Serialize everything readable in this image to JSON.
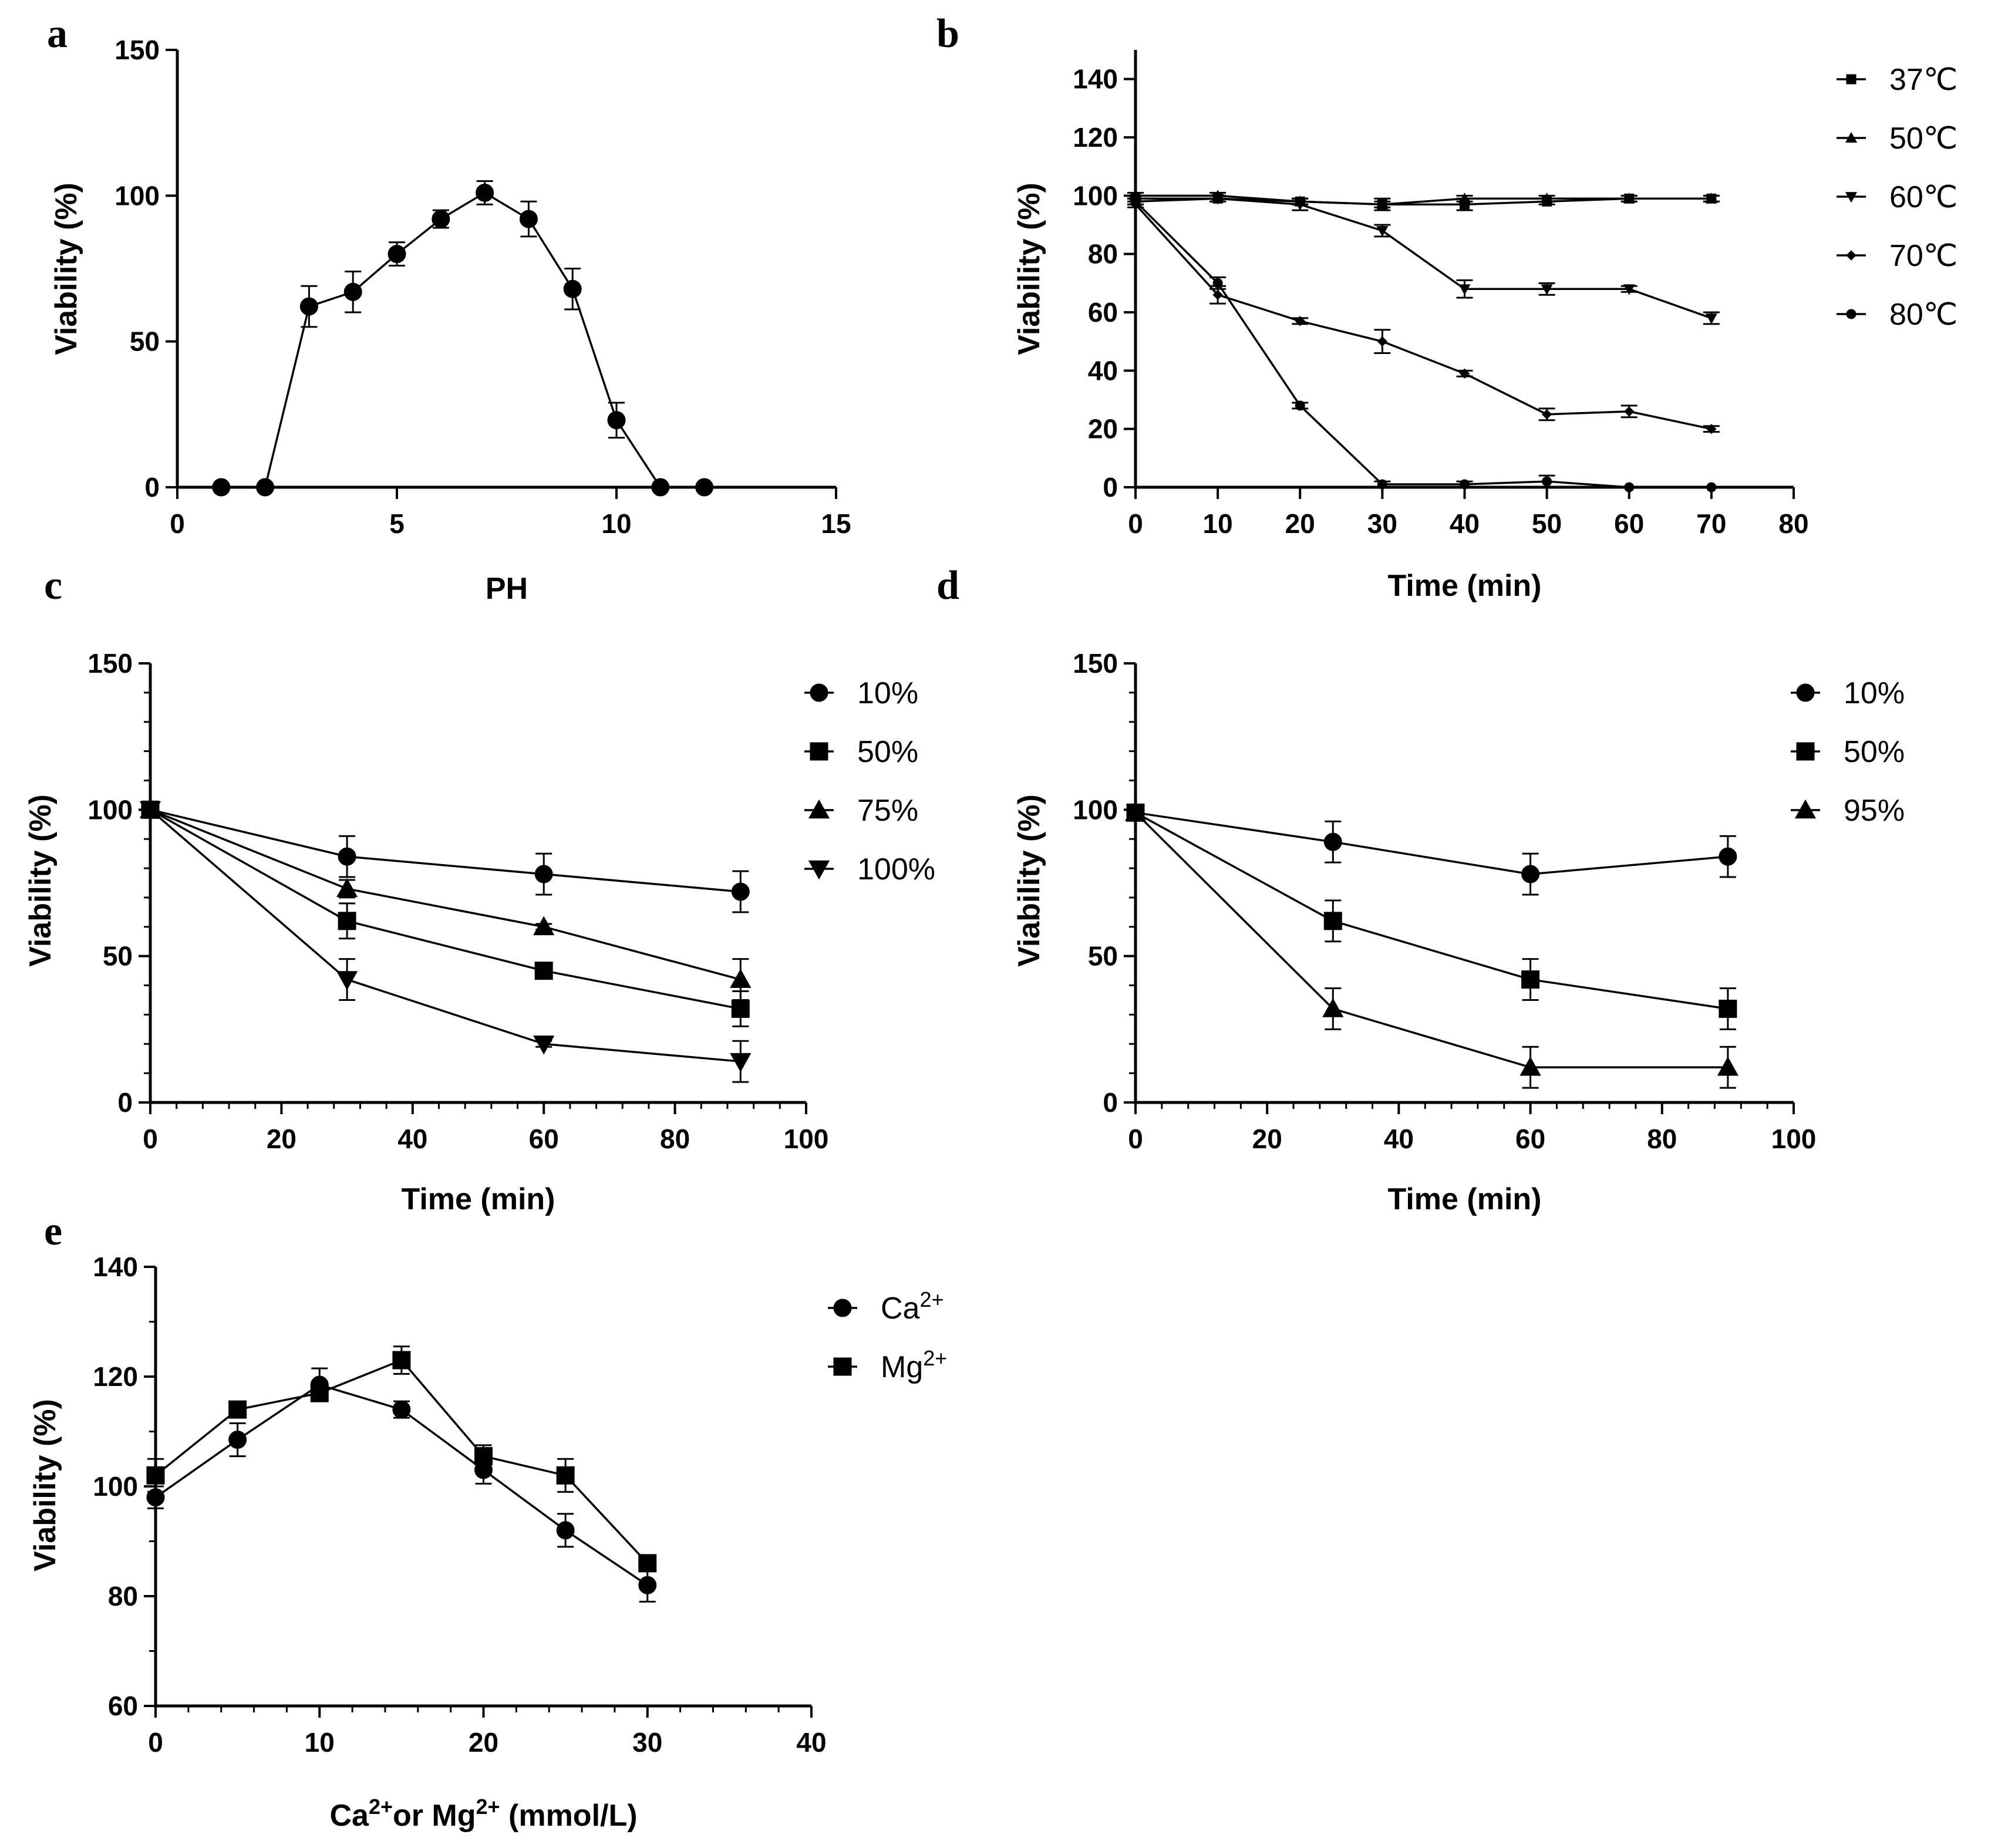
{
  "figure": {
    "panels": [
      "a",
      "b",
      "c",
      "d",
      "e"
    ]
  },
  "chart_data": [
    {
      "panel": "a",
      "type": "line",
      "xlabel": "PH",
      "ylabel": "Viability (%)",
      "xlim": [
        0,
        15
      ],
      "ylim": [
        0,
        150
      ],
      "xticks": [
        0,
        5,
        10,
        15
      ],
      "yticks": [
        0,
        50,
        100,
        150
      ],
      "legend": null,
      "series": [
        {
          "name": "viability",
          "marker": "circle",
          "x": [
            1,
            2,
            3,
            4,
            5,
            6,
            7,
            8,
            9,
            10,
            11,
            12
          ],
          "y": [
            0,
            0,
            62,
            67,
            80,
            92,
            101,
            92,
            68,
            23,
            0,
            0
          ],
          "err": [
            0,
            0,
            7,
            7,
            4,
            3,
            4,
            6,
            7,
            6,
            0,
            0
          ]
        }
      ]
    },
    {
      "panel": "b",
      "type": "line",
      "xlabel": "Time (min)",
      "ylabel": "Viability (%)",
      "xlim": [
        0,
        80
      ],
      "ylim": [
        0,
        150
      ],
      "xticks": [
        0,
        10,
        20,
        30,
        40,
        50,
        60,
        70,
        80
      ],
      "yticks": [
        0,
        20,
        40,
        60,
        80,
        100,
        120,
        140
      ],
      "legend": "right",
      "series": [
        {
          "name": "37℃",
          "marker": "square",
          "x": [
            0,
            10,
            20,
            30,
            40,
            50,
            60,
            70
          ],
          "y": [
            99,
            99,
            98,
            97,
            97,
            98,
            99,
            99
          ],
          "err": [
            1,
            1,
            1,
            2,
            2,
            1,
            1,
            1
          ]
        },
        {
          "name": "50℃",
          "marker": "triangle-up",
          "x": [
            0,
            10,
            20,
            30,
            40,
            50,
            60,
            70
          ],
          "y": [
            100,
            100,
            98,
            97,
            99,
            99,
            99,
            99
          ],
          "err": [
            1,
            1,
            1,
            1,
            1,
            1,
            1,
            1
          ]
        },
        {
          "name": "60℃",
          "marker": "triangle-down",
          "x": [
            0,
            10,
            20,
            30,
            40,
            50,
            60,
            70
          ],
          "y": [
            98,
            99,
            97,
            88,
            68,
            68,
            68,
            58
          ],
          "err": [
            1,
            1,
            2,
            2,
            3,
            2,
            1,
            2
          ]
        },
        {
          "name": "70℃",
          "marker": "diamond",
          "x": [
            0,
            10,
            20,
            30,
            40,
            50,
            60,
            70
          ],
          "y": [
            97,
            66,
            57,
            50,
            39,
            25,
            26,
            20
          ],
          "err": [
            1,
            3,
            1,
            4,
            1,
            2,
            2,
            1
          ]
        },
        {
          "name": "80℃",
          "marker": "circle",
          "x": [
            0,
            10,
            20,
            30,
            40,
            50,
            60,
            70
          ],
          "y": [
            98,
            70,
            28,
            1,
            1,
            2,
            0,
            0
          ],
          "err": [
            1,
            2,
            1,
            1,
            1,
            2,
            0,
            0
          ]
        }
      ]
    },
    {
      "panel": "c",
      "type": "line",
      "xlabel": "Time (min)",
      "ylabel": "Viability (%)",
      "xlim": [
        0,
        100
      ],
      "ylim": [
        0,
        150
      ],
      "xticks": [
        0,
        20,
        40,
        60,
        80,
        100
      ],
      "yticks": [
        0,
        50,
        100,
        150
      ],
      "legend": "right",
      "series": [
        {
          "name": "10%",
          "marker": "circle",
          "x": [
            0,
            30,
            60,
            90
          ],
          "y": [
            100,
            84,
            78,
            72
          ],
          "err": [
            2,
            7,
            7,
            7
          ]
        },
        {
          "name": "50%",
          "marker": "square",
          "x": [
            0,
            30,
            60,
            90
          ],
          "y": [
            100,
            62,
            45,
            32
          ],
          "err": [
            2,
            6,
            1,
            6
          ]
        },
        {
          "name": "75%",
          "marker": "triangle-up",
          "x": [
            0,
            30,
            60,
            90
          ],
          "y": [
            100,
            73,
            60,
            42
          ],
          "err": [
            2,
            3,
            1,
            7
          ]
        },
        {
          "name": "100%",
          "marker": "triangle-down",
          "x": [
            0,
            30,
            60,
            90
          ],
          "y": [
            100,
            42,
            20,
            14
          ],
          "err": [
            2,
            7,
            1,
            7
          ]
        }
      ]
    },
    {
      "panel": "d",
      "type": "line",
      "xlabel": "Time (min)",
      "ylabel": "Viability (%)",
      "xlim": [
        0,
        100
      ],
      "ylim": [
        0,
        150
      ],
      "xticks": [
        0,
        20,
        40,
        60,
        80,
        100
      ],
      "yticks": [
        0,
        50,
        100,
        150
      ],
      "legend": "right",
      "series": [
        {
          "name": "10%",
          "marker": "circle",
          "x": [
            0,
            30,
            60,
            90
          ],
          "y": [
            99,
            89,
            78,
            84
          ],
          "err": [
            2,
            7,
            7,
            7
          ]
        },
        {
          "name": "50%",
          "marker": "square",
          "x": [
            0,
            30,
            60,
            90
          ],
          "y": [
            99,
            62,
            42,
            32
          ],
          "err": [
            2,
            7,
            7,
            7
          ]
        },
        {
          "name": "95%",
          "marker": "triangle-up",
          "x": [
            0,
            30,
            60,
            90
          ],
          "y": [
            99,
            32,
            12,
            12
          ],
          "err": [
            2,
            7,
            7,
            7
          ]
        }
      ]
    },
    {
      "panel": "e",
      "type": "line",
      "xlabel_parts": [
        "Ca",
        "2+",
        "or Mg",
        "2+",
        " (mmol/L)"
      ],
      "ylabel": "Viability (%)",
      "xlim": [
        0,
        40
      ],
      "ylim": [
        60,
        140
      ],
      "xticks": [
        0,
        10,
        20,
        30,
        40
      ],
      "yticks": [
        60,
        80,
        100,
        120,
        140
      ],
      "legend": "right",
      "series": [
        {
          "name": "Ca",
          "sup": "2+",
          "marker": "circle",
          "x": [
            0,
            5,
            10,
            15,
            20,
            25,
            30
          ],
          "y": [
            98,
            108.5,
            118.5,
            114,
            103,
            92,
            82
          ],
          "err": [
            2,
            3,
            3,
            1.5,
            2.5,
            3,
            3
          ]
        },
        {
          "name": "Mg",
          "sup": "2+",
          "marker": "square",
          "x": [
            0,
            5,
            10,
            15,
            20,
            25,
            30
          ],
          "y": [
            102,
            114,
            117,
            123,
            105.5,
            102,
            86
          ],
          "err": [
            3,
            1,
            1,
            2.5,
            2,
            3,
            1
          ]
        }
      ]
    }
  ]
}
